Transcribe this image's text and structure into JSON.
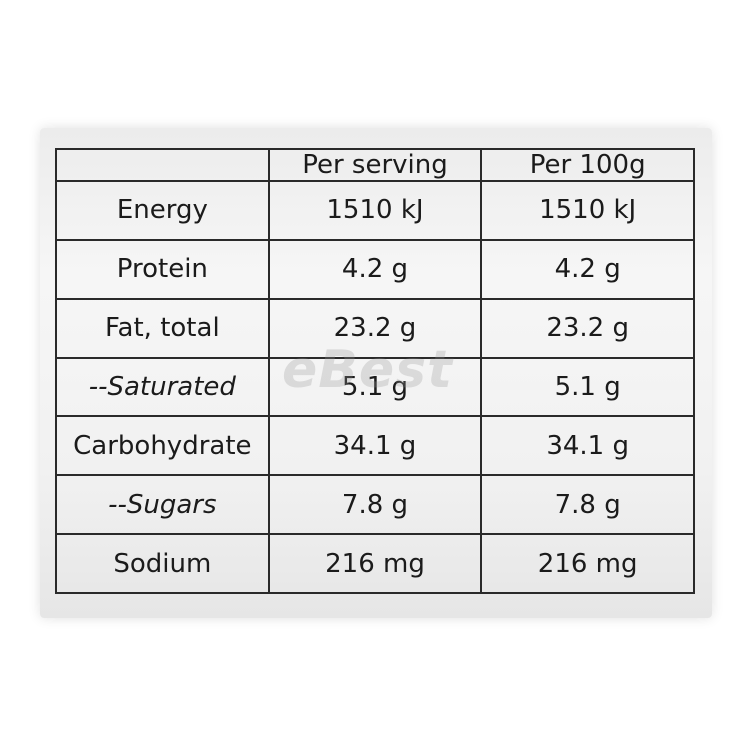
{
  "table": {
    "header": [
      "Per serving",
      "Per 100g"
    ],
    "rows": [
      [
        "Energy",
        "1510 kJ",
        "1510 kJ"
      ],
      [
        "Protein",
        "4.2 g",
        "4.2 g"
      ],
      [
        "Fat, total",
        "23.2 g",
        "23.2 g"
      ],
      [
        "--Saturated",
        "5.1 g",
        "5.1 g"
      ],
      [
        "Carbohydrate",
        "34.1 g",
        "34.1 g"
      ],
      [
        "--Sugars",
        "7.8 g",
        "7.8 g"
      ],
      [
        "Sodium",
        "216 mg",
        "216 mg"
      ]
    ]
  },
  "watermark": "eBest"
}
